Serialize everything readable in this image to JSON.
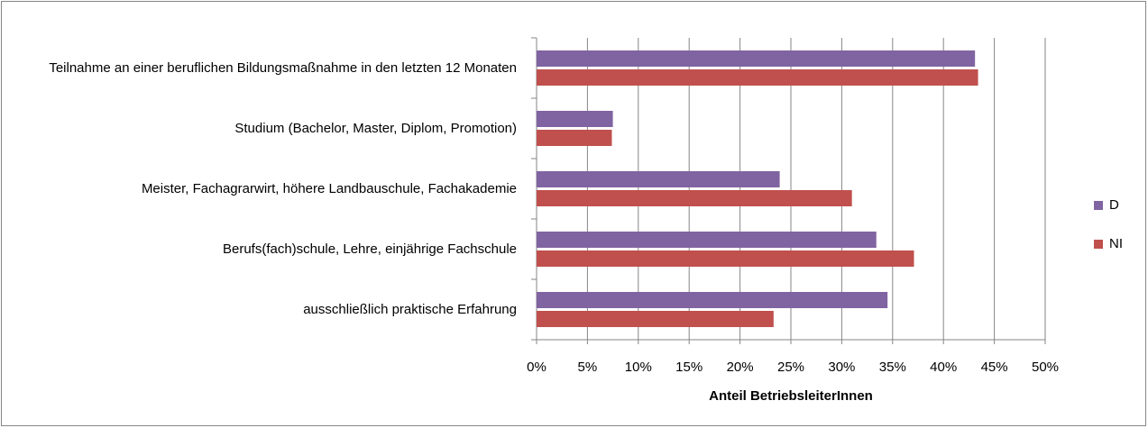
{
  "chart_data": {
    "type": "hbar",
    "categories": [
      "Teilnahme an einer beruflichen Bildungsmaßnahme in den letzten 12 Monaten",
      "Studium (Bachelor, Master, Diplom, Promotion)",
      "Meister, Fachagrarwirt, höhere Landbauschule, Fachakademie",
      "Berufs(fach)schule, Lehre, einjährige Fachschule",
      "ausschließlich praktische Erfahrung"
    ],
    "series": [
      {
        "name": "D",
        "color": "#8064a2",
        "values": [
          43.1,
          7.5,
          23.9,
          33.4,
          34.5
        ]
      },
      {
        "name": "NI",
        "color": "#c0504d",
        "values": [
          43.4,
          7.4,
          31.0,
          37.1,
          23.3
        ]
      }
    ],
    "xlabel": "Anteil BetriebsleiterInnen",
    "xlim": [
      0,
      50
    ],
    "xticks": [
      {
        "value": 0,
        "label": "0%"
      },
      {
        "value": 5,
        "label": "5%"
      },
      {
        "value": 10,
        "label": "10%"
      },
      {
        "value": 15,
        "label": "15%"
      },
      {
        "value": 20,
        "label": "20%"
      },
      {
        "value": 25,
        "label": "25%"
      },
      {
        "value": 30,
        "label": "30%"
      },
      {
        "value": 35,
        "label": "35%"
      },
      {
        "value": 40,
        "label": "40%"
      },
      {
        "value": 45,
        "label": "45%"
      },
      {
        "value": 50,
        "label": "50%"
      }
    ],
    "grid": true,
    "legend": "right"
  }
}
